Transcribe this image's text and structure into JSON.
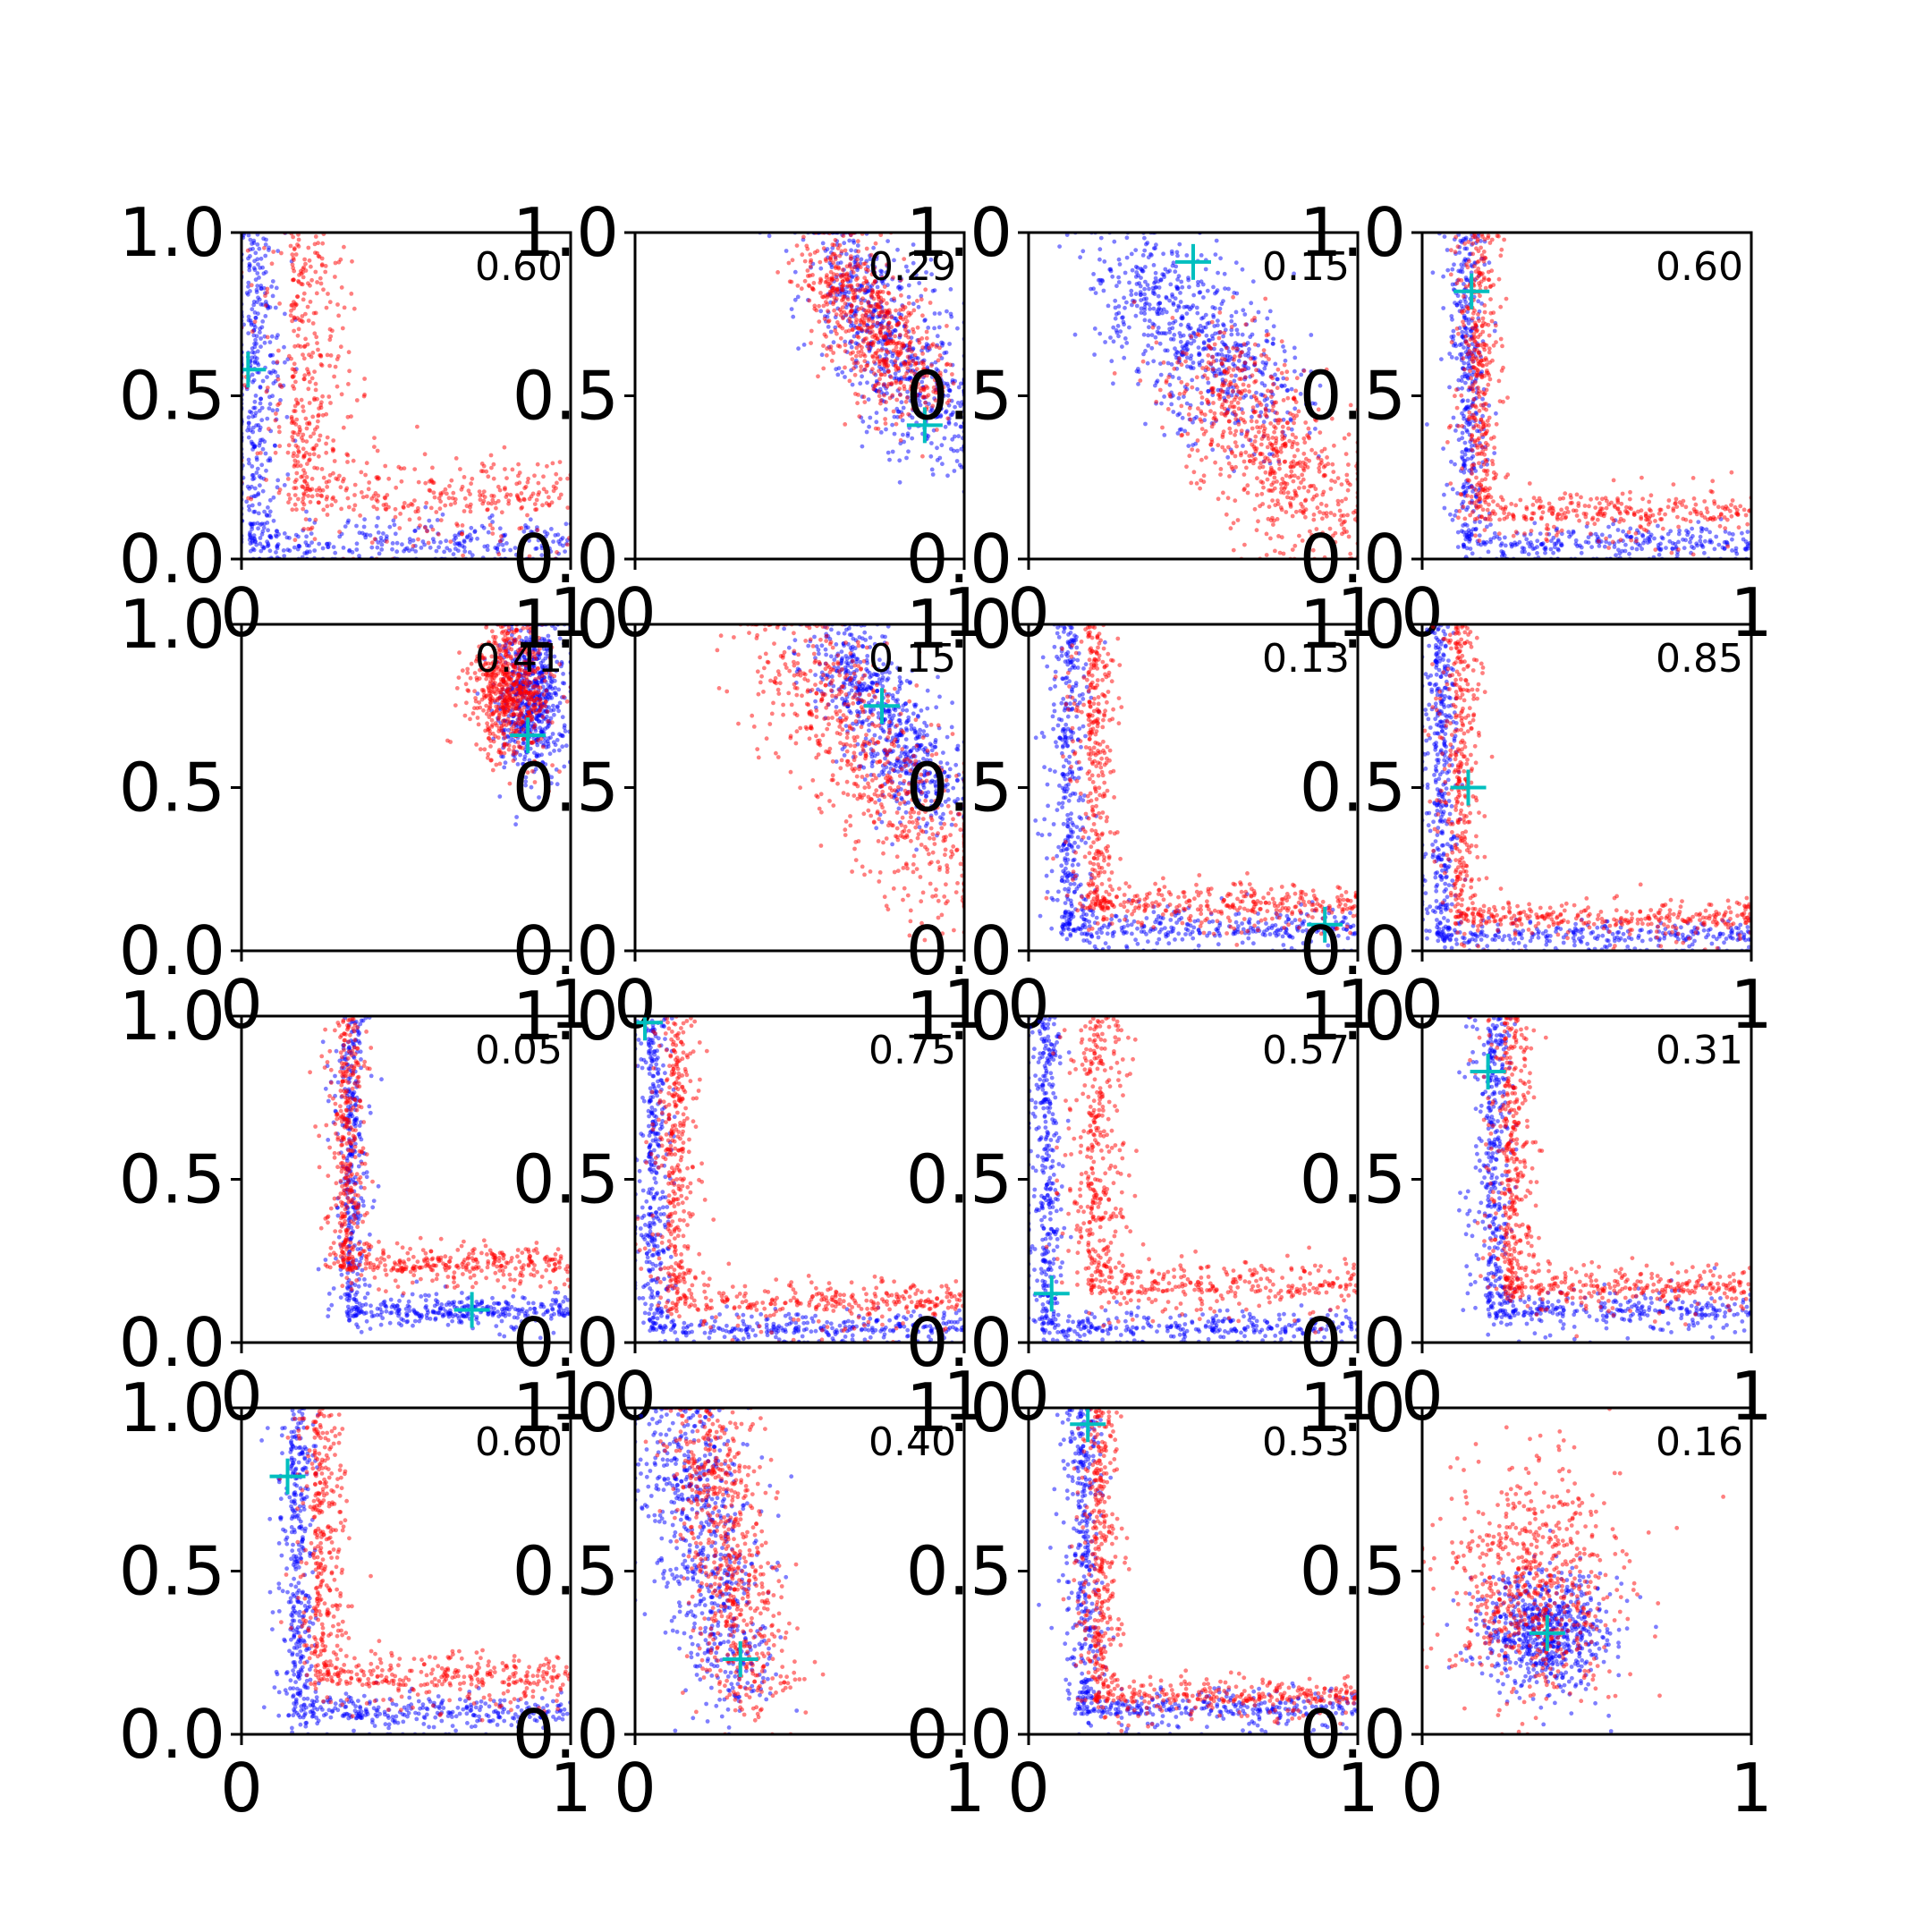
{
  "chart_data": {
    "type": "scatter",
    "layout": {
      "rows": 4,
      "cols": 4
    },
    "xlim": [
      0,
      1
    ],
    "ylim": [
      0,
      1
    ],
    "xticks": [
      0,
      1
    ],
    "xtick_labels": [
      "0",
      "1"
    ],
    "yticks": [
      0,
      0.5,
      1
    ],
    "ytick_labels": [
      "0.0",
      "0.5",
      "1.0"
    ],
    "series_colors": {
      "red": "#ff0000",
      "blue": "#0000ff",
      "marker": "#00bfbf"
    },
    "marker_symbol": "+",
    "grid": false,
    "panels": [
      {
        "label": "0.60",
        "marker": [
          0.02,
          0.58
        ],
        "red": {
          "shape": "L",
          "cx": 0.15,
          "cy": 0.15,
          "sw": 0.14
        },
        "blue": {
          "shape": "L",
          "cx": 0.02,
          "cy": 0.02,
          "sw": 0.08
        }
      },
      {
        "label": "0.29",
        "marker": [
          0.88,
          0.41
        ],
        "red": {
          "shape": "diag",
          "ax": 0.58,
          "ay": 0.92,
          "bx": 0.86,
          "by": 0.5,
          "sw": 0.07
        },
        "blue": {
          "shape": "diag",
          "ax": 0.6,
          "ay": 0.95,
          "bx": 0.95,
          "by": 0.38,
          "sw": 0.09
        }
      },
      {
        "label": "0.15",
        "marker": [
          0.5,
          0.91
        ],
        "red": {
          "shape": "diag",
          "ax": 0.55,
          "ay": 0.6,
          "bx": 0.9,
          "by": 0.12,
          "sw": 0.1
        },
        "blue": {
          "shape": "diag",
          "ax": 0.3,
          "ay": 0.9,
          "bx": 0.72,
          "by": 0.45,
          "sw": 0.1
        }
      },
      {
        "label": "0.60",
        "marker": [
          0.15,
          0.82
        ],
        "red": {
          "shape": "L",
          "cx": 0.15,
          "cy": 0.12,
          "sw": 0.07
        },
        "blue": {
          "shape": "L",
          "cx": 0.12,
          "cy": 0.03,
          "sw": 0.06
        }
      },
      {
        "label": "0.41",
        "marker": [
          0.87,
          0.66
        ],
        "red": {
          "shape": "blob",
          "cx": 0.82,
          "cy": 0.8,
          "sx": 0.06,
          "sy": 0.1
        },
        "blue": {
          "shape": "blob",
          "cx": 0.88,
          "cy": 0.78,
          "sx": 0.05,
          "sy": 0.12
        }
      },
      {
        "label": "0.15",
        "marker": [
          0.75,
          0.75
        ],
        "red": {
          "shape": "diag",
          "ax": 0.45,
          "ay": 0.95,
          "bx": 0.98,
          "by": 0.2,
          "sw": 0.1
        },
        "blue": {
          "shape": "diag",
          "ax": 0.6,
          "ay": 0.95,
          "bx": 0.92,
          "by": 0.45,
          "sw": 0.07
        }
      },
      {
        "label": "0.13",
        "marker": [
          0.9,
          0.08
        ],
        "red": {
          "shape": "L",
          "cx": 0.18,
          "cy": 0.12,
          "sw": 0.07
        },
        "blue": {
          "shape": "L",
          "cx": 0.1,
          "cy": 0.05,
          "sw": 0.06
        }
      },
      {
        "label": "0.85",
        "marker": [
          0.14,
          0.5
        ],
        "red": {
          "shape": "L",
          "cx": 0.1,
          "cy": 0.08,
          "sw": 0.06
        },
        "blue": {
          "shape": "L",
          "cx": 0.04,
          "cy": 0.03,
          "sw": 0.05
        }
      },
      {
        "label": "0.05",
        "marker": [
          0.7,
          0.1
        ],
        "red": {
          "shape": "L",
          "cx": 0.3,
          "cy": 0.22,
          "sw": 0.06
        },
        "blue": {
          "shape": "L",
          "cx": 0.32,
          "cy": 0.08,
          "sw": 0.05
        }
      },
      {
        "label": "0.75",
        "marker": [
          0.03,
          0.98
        ],
        "red": {
          "shape": "L",
          "cx": 0.1,
          "cy": 0.1,
          "sw": 0.07
        },
        "blue": {
          "shape": "L",
          "cx": 0.04,
          "cy": 0.03,
          "sw": 0.05
        }
      },
      {
        "label": "0.57",
        "marker": [
          0.07,
          0.15
        ],
        "red": {
          "shape": "L",
          "cx": 0.18,
          "cy": 0.15,
          "sw": 0.09
        },
        "blue": {
          "shape": "L",
          "cx": 0.04,
          "cy": 0.03,
          "sw": 0.05
        }
      },
      {
        "label": "0.31",
        "marker": [
          0.2,
          0.83
        ],
        "red": {
          "shape": "L",
          "cx": 0.25,
          "cy": 0.15,
          "sw": 0.07
        },
        "blue": {
          "shape": "L",
          "cx": 0.2,
          "cy": 0.08,
          "sw": 0.06
        }
      },
      {
        "label": "0.60",
        "marker": [
          0.14,
          0.79
        ],
        "red": {
          "shape": "L",
          "cx": 0.22,
          "cy": 0.15,
          "sw": 0.08
        },
        "blue": {
          "shape": "L",
          "cx": 0.15,
          "cy": 0.05,
          "sw": 0.06
        }
      },
      {
        "label": "0.40",
        "marker": [
          0.32,
          0.23
        ],
        "red": {
          "shape": "diag",
          "ax": 0.2,
          "ay": 0.98,
          "bx": 0.38,
          "by": 0.1,
          "sw": 0.07
        },
        "blue": {
          "shape": "diag",
          "ax": 0.13,
          "ay": 0.98,
          "bx": 0.3,
          "by": 0.15,
          "sw": 0.08
        }
      },
      {
        "label": "0.53",
        "marker": [
          0.18,
          0.95
        ],
        "red": {
          "shape": "L",
          "cx": 0.2,
          "cy": 0.1,
          "sw": 0.06
        },
        "blue": {
          "shape": "L",
          "cx": 0.15,
          "cy": 0.06,
          "sw": 0.06
        }
      },
      {
        "label": "0.16",
        "marker": [
          0.38,
          0.31
        ],
        "red": {
          "shape": "blob",
          "cx": 0.35,
          "cy": 0.45,
          "sx": 0.13,
          "sy": 0.18
        },
        "blue": {
          "shape": "blob",
          "cx": 0.37,
          "cy": 0.3,
          "sx": 0.1,
          "sy": 0.09
        }
      }
    ]
  }
}
